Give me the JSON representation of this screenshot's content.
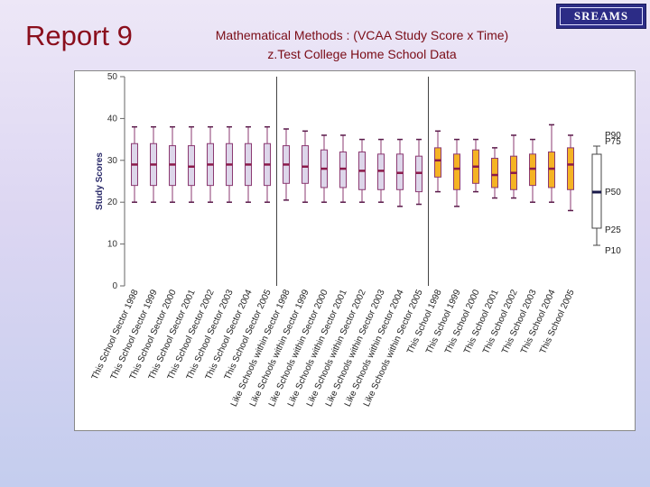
{
  "header": {
    "report_title": "Report 9",
    "subtitle_line1": "Mathematical Methods : (VCAA Study Score x Time)",
    "subtitle_line2": "z.Test College Home School Data",
    "logo_text": "SREAMS"
  },
  "chart_data": {
    "type": "boxplot",
    "title": "",
    "ylabel": "Study Scores",
    "xlabel": "",
    "ylim": [
      0,
      50
    ],
    "yticks": [
      0,
      10,
      20,
      30,
      40,
      50
    ],
    "grid": false,
    "categories": [
      "This School Sector 1998",
      "This School Sector 1999",
      "This School Sector 2000",
      "This School Sector 2001",
      "This School Sector 2002",
      "This School Sector 2003",
      "This School Sector 2004",
      "This School Sector 2005",
      "Like Schools within Sector 1998",
      "Like Schools within Sector 1999",
      "Like Schools within Sector 2000",
      "Like Schools within Sector 2001",
      "Like Schools within Sector 2002",
      "Like Schools within Sector 2003",
      "Like Schools within Sector 2004",
      "Like Schools within Sector 2005",
      "This School 1998",
      "This School 1999",
      "This School 2000",
      "This School 2001",
      "This School 2002",
      "This School 2003",
      "This School 2004",
      "This School 2005"
    ],
    "groups": [
      {
        "start": 0,
        "end": 7,
        "box_fill": "#ddd6ea",
        "box_stroke": "#8b3a72"
      },
      {
        "start": 8,
        "end": 15,
        "box_fill": "#ddd6ea",
        "box_stroke": "#8b3a72"
      },
      {
        "start": 16,
        "end": 23,
        "box_fill": "#f5b324",
        "box_stroke": "#8b3a72"
      }
    ],
    "dividers_after": [
      7,
      15
    ],
    "median_color": "#8b1a4a",
    "boxes": [
      {
        "p10": 20,
        "p25": 24,
        "p50": 29,
        "p75": 34,
        "p90": 38
      },
      {
        "p10": 20,
        "p25": 24,
        "p50": 29,
        "p75": 34,
        "p90": 38
      },
      {
        "p10": 20,
        "p25": 24,
        "p50": 29,
        "p75": 33.5,
        "p90": 38
      },
      {
        "p10": 20,
        "p25": 24,
        "p50": 28.5,
        "p75": 33.5,
        "p90": 38
      },
      {
        "p10": 20,
        "p25": 24,
        "p50": 29,
        "p75": 34,
        "p90": 38
      },
      {
        "p10": 20,
        "p25": 24,
        "p50": 29,
        "p75": 34,
        "p90": 38
      },
      {
        "p10": 20,
        "p25": 24,
        "p50": 29,
        "p75": 34,
        "p90": 38
      },
      {
        "p10": 20,
        "p25": 24,
        "p50": 29,
        "p75": 34,
        "p90": 38
      },
      {
        "p10": 20.5,
        "p25": 24.5,
        "p50": 29,
        "p75": 33.5,
        "p90": 37.5
      },
      {
        "p10": 20,
        "p25": 24.5,
        "p50": 28.5,
        "p75": 33.5,
        "p90": 37
      },
      {
        "p10": 20,
        "p25": 23.5,
        "p50": 28,
        "p75": 32.5,
        "p90": 36
      },
      {
        "p10": 20,
        "p25": 23.5,
        "p50": 28,
        "p75": 32,
        "p90": 36
      },
      {
        "p10": 20,
        "p25": 23,
        "p50": 27.5,
        "p75": 32,
        "p90": 35
      },
      {
        "p10": 20,
        "p25": 23,
        "p50": 27.5,
        "p75": 31.5,
        "p90": 35
      },
      {
        "p10": 19,
        "p25": 23,
        "p50": 27,
        "p75": 31.5,
        "p90": 35
      },
      {
        "p10": 19.5,
        "p25": 22.5,
        "p50": 27,
        "p75": 31,
        "p90": 35
      },
      {
        "p10": 22.5,
        "p25": 26,
        "p50": 30,
        "p75": 33,
        "p90": 37
      },
      {
        "p10": 19,
        "p25": 23,
        "p50": 28,
        "p75": 31.5,
        "p90": 35
      },
      {
        "p10": 22.5,
        "p25": 24.5,
        "p50": 28.5,
        "p75": 32.5,
        "p90": 35
      },
      {
        "p10": 21,
        "p25": 23.5,
        "p50": 26.5,
        "p75": 30.5,
        "p90": 33
      },
      {
        "p10": 21,
        "p25": 23,
        "p50": 27,
        "p75": 31,
        "p90": 36
      },
      {
        "p10": 20,
        "p25": 24,
        "p50": 28,
        "p75": 31.5,
        "p90": 35
      },
      {
        "p10": 20,
        "p25": 23.5,
        "p50": 28,
        "p75": 32,
        "p90": 38.5
      },
      {
        "p10": 18,
        "p25": 23,
        "p50": 29,
        "p75": 33,
        "p90": 36
      }
    ],
    "legend": {
      "position": "right",
      "labels": [
        "P90",
        "P75",
        "P50",
        "P25",
        "P10"
      ]
    }
  }
}
